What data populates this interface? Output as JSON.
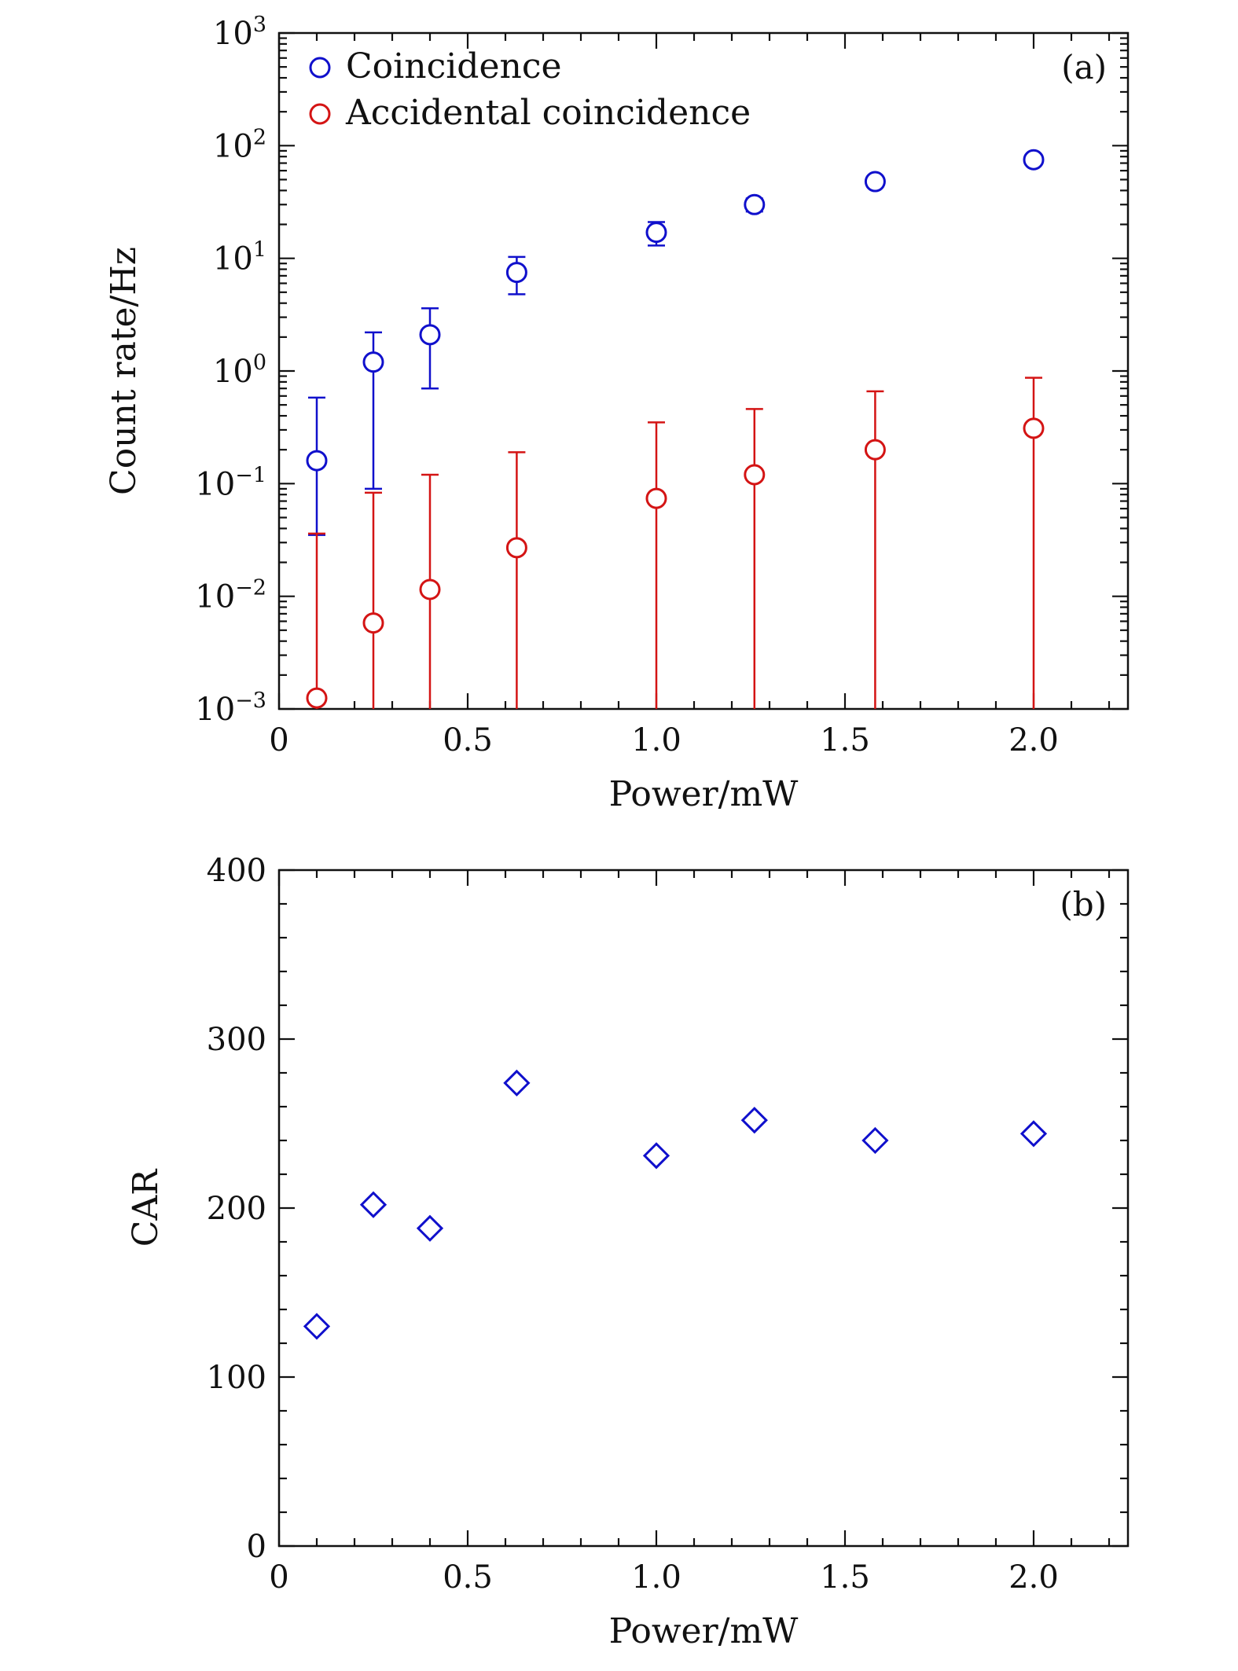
{
  "figure": {
    "colors": {
      "coincidence": "#1010cc",
      "accidental": "#d41414",
      "car": "#1010cc",
      "axes": "#111111"
    }
  },
  "chart_data": [
    {
      "type": "scatter",
      "panel_label": "(a)",
      "xlabel": "Power/mW",
      "ylabel": "Count rate/Hz",
      "xlim": [
        0,
        2.25
      ],
      "ylim": [
        0.001,
        1000
      ],
      "yscale": "log",
      "x_ticks": [
        {
          "value": 0,
          "label": "0"
        },
        {
          "value": 0.5,
          "label": "0.5"
        },
        {
          "value": 1.0,
          "label": "1.0"
        },
        {
          "value": 1.5,
          "label": "1.5"
        },
        {
          "value": 2.0,
          "label": "2.0"
        }
      ],
      "y_ticks": [
        {
          "value": 0.001,
          "base": "10",
          "exp": "−3"
        },
        {
          "value": 0.01,
          "base": "10",
          "exp": "−2"
        },
        {
          "value": 0.1,
          "base": "10",
          "exp": "−1"
        },
        {
          "value": 1,
          "base": "10",
          "exp": "0"
        },
        {
          "value": 10,
          "base": "10",
          "exp": "1"
        },
        {
          "value": 100,
          "base": "10",
          "exp": "2"
        },
        {
          "value": 1000,
          "base": "10",
          "exp": "3"
        }
      ],
      "legend_position": "top-left",
      "series": [
        {
          "name": "Coincidence",
          "marker": "circle",
          "color": "#1010cc",
          "x": [
            0.1,
            0.25,
            0.4,
            0.63,
            1.0,
            1.26,
            1.58,
            2.0
          ],
          "y": [
            0.16,
            1.2,
            2.1,
            7.5,
            17,
            30,
            48,
            75
          ],
          "err_low": [
            0.035,
            0.09,
            0.7,
            4.8,
            13,
            26,
            43,
            70
          ],
          "err_high": [
            0.58,
            2.2,
            3.6,
            10.3,
            21,
            34,
            53,
            80
          ]
        },
        {
          "name": "Accidental coincidence",
          "marker": "circle",
          "color": "#d41414",
          "x": [
            0.1,
            0.25,
            0.4,
            0.63,
            1.0,
            1.26,
            1.58,
            2.0
          ],
          "y": [
            0.00125,
            0.0058,
            0.0115,
            0.027,
            0.074,
            0.12,
            0.2,
            0.31
          ],
          "err_low": [
            0.001,
            0.001,
            0.001,
            0.001,
            0.001,
            0.001,
            0.001,
            0.001
          ],
          "err_high": [
            0.036,
            0.083,
            0.12,
            0.19,
            0.35,
            0.46,
            0.66,
            0.87
          ]
        }
      ]
    },
    {
      "type": "scatter",
      "panel_label": "(b)",
      "xlabel": "Power/mW",
      "ylabel": "CAR",
      "xlim": [
        0,
        2.25
      ],
      "ylim": [
        0,
        400
      ],
      "yscale": "linear",
      "x_ticks": [
        {
          "value": 0,
          "label": "0"
        },
        {
          "value": 0.5,
          "label": "0.5"
        },
        {
          "value": 1.0,
          "label": "1.0"
        },
        {
          "value": 1.5,
          "label": "1.5"
        },
        {
          "value": 2.0,
          "label": "2.0"
        }
      ],
      "y_ticks": [
        {
          "value": 0,
          "label": "0"
        },
        {
          "value": 100,
          "label": "100"
        },
        {
          "value": 200,
          "label": "200"
        },
        {
          "value": 300,
          "label": "300"
        },
        {
          "value": 400,
          "label": "400"
        }
      ],
      "series": [
        {
          "marker": "diamond",
          "color": "#1010cc",
          "x": [
            0.1,
            0.25,
            0.4,
            0.63,
            1.0,
            1.26,
            1.58,
            2.0
          ],
          "y": [
            130,
            202,
            188,
            274,
            231,
            252,
            240,
            244
          ]
        }
      ]
    }
  ]
}
